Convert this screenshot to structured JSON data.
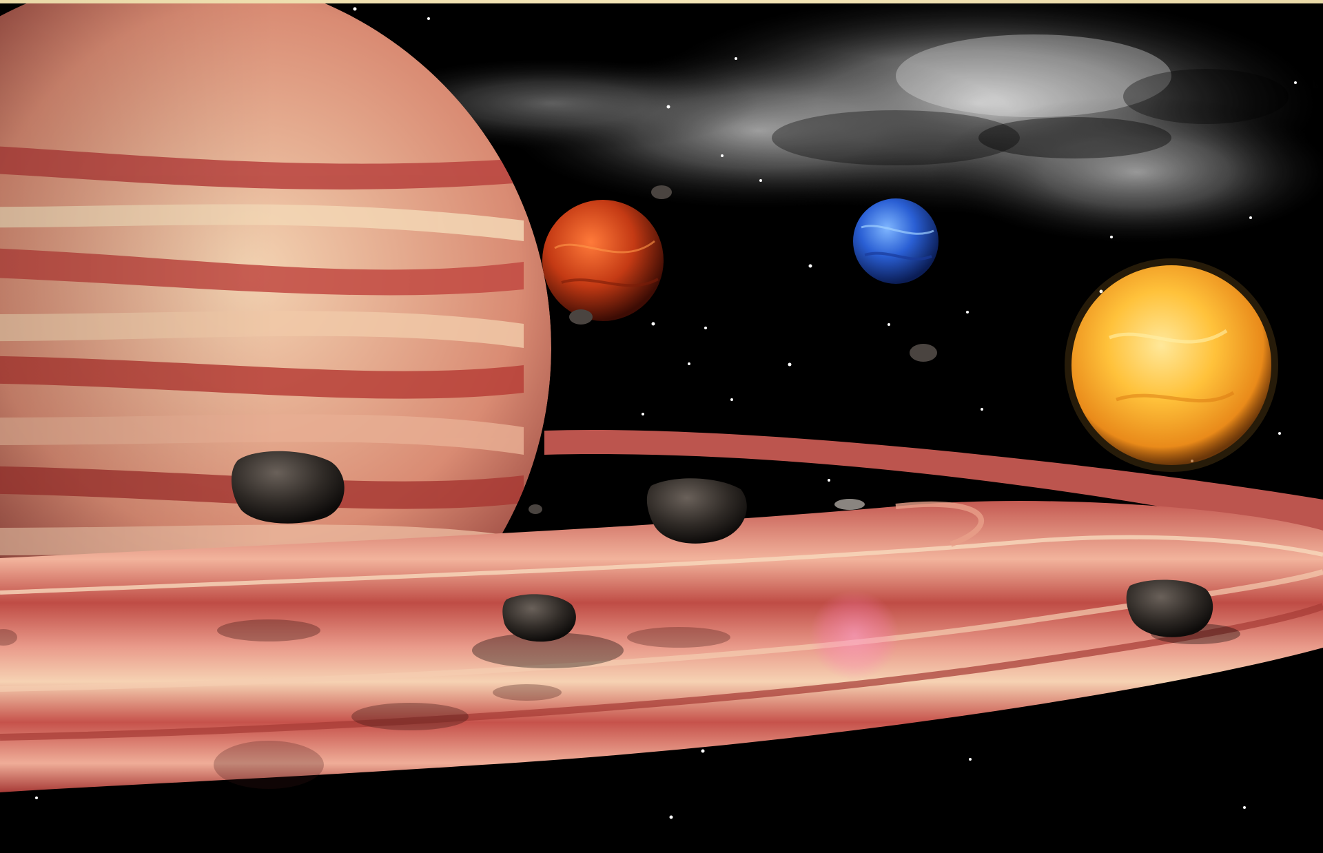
{
  "scene": {
    "description_visible_text": "",
    "colors": {
      "space": "#000000",
      "frame_top": "#efe0b2",
      "gas_giant_light": "#f0c9a6",
      "gas_giant_dark": "#b8433e",
      "ring_light": "#f0b9a0",
      "ring_dark": "#b84a44",
      "red_planet": "#c9401a",
      "blue_planet": "#2c5fd0",
      "sun": "#ffc040",
      "nebula": "#cfcfcf",
      "asteroid": "#3a3430"
    },
    "icons": [
      "gas-giant",
      "planet-ring",
      "red-planet",
      "blue-planet",
      "sun",
      "nebula-cloud",
      "asteroid",
      "star-field",
      "lens-flare"
    ]
  }
}
